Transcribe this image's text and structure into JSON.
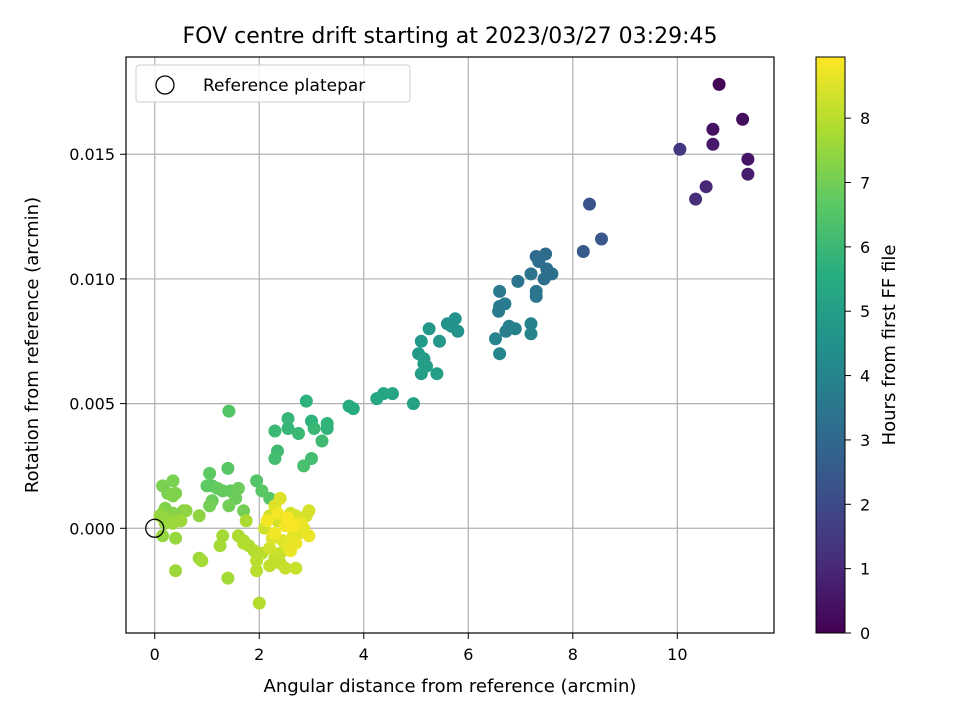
{
  "chart_data": {
    "type": "scatter",
    "title": "FOV centre drift starting at 2023/03/27 03:29:45",
    "xlabel": "Angular distance from reference (arcmin)",
    "ylabel": "Rotation from reference (arcmin)",
    "xlim": [
      -0.55,
      11.85
    ],
    "ylim": [
      -0.0042,
      0.0189
    ],
    "xticks": [
      0,
      2,
      4,
      6,
      8,
      10
    ],
    "yticks": [
      0.0,
      0.005,
      0.01,
      0.015
    ],
    "xtick_labels": [
      "0",
      "2",
      "4",
      "6",
      "8",
      "10"
    ],
    "ytick_labels": [
      "0.000",
      "0.005",
      "0.010",
      "0.015"
    ],
    "grid": true,
    "colormap": "viridis",
    "colorbar": {
      "label": "Hours from first FF file",
      "range": [
        0,
        8.95
      ],
      "ticks": [
        0,
        1,
        2,
        3,
        4,
        5,
        6,
        7,
        8
      ],
      "tick_labels": [
        "0",
        "1",
        "2",
        "3",
        "4",
        "5",
        "6",
        "7",
        "8"
      ]
    },
    "legend": {
      "placement": "top-left",
      "entries": [
        {
          "label": "Reference platepar",
          "marker": "open-circle",
          "x": 0.0,
          "y": 0.0
        }
      ]
    },
    "series": [
      {
        "points": [
          [
            10.8,
            0.0178,
            0.1
          ],
          [
            11.25,
            0.0164,
            0.3
          ],
          [
            10.68,
            0.016,
            0.4
          ],
          [
            11.35,
            0.0148,
            0.5
          ],
          [
            10.68,
            0.0154,
            0.6
          ],
          [
            11.35,
            0.0142,
            0.7
          ],
          [
            10.55,
            0.0137,
            1.0
          ],
          [
            10.35,
            0.0132,
            1.2
          ],
          [
            10.05,
            0.0152,
            1.4
          ],
          [
            8.32,
            0.013,
            2.3
          ],
          [
            8.55,
            0.0116,
            2.4
          ],
          [
            8.2,
            0.0111,
            2.5
          ],
          [
            7.3,
            0.0109,
            3.0
          ],
          [
            7.48,
            0.011,
            3.1
          ],
          [
            7.35,
            0.0107,
            3.2
          ],
          [
            7.5,
            0.0104,
            3.2
          ],
          [
            7.6,
            0.0102,
            3.3
          ],
          [
            7.45,
            0.01,
            3.3
          ],
          [
            7.2,
            0.0102,
            3.4
          ],
          [
            6.95,
            0.0099,
            3.4
          ],
          [
            7.3,
            0.0095,
            3.5
          ],
          [
            7.3,
            0.0093,
            3.5
          ],
          [
            6.6,
            0.0095,
            3.6
          ],
          [
            6.6,
            0.0089,
            3.6
          ],
          [
            6.7,
            0.009,
            3.7
          ],
          [
            6.58,
            0.0087,
            3.7
          ],
          [
            6.78,
            0.0081,
            3.8
          ],
          [
            6.72,
            0.0079,
            3.8
          ],
          [
            6.9,
            0.008,
            3.9
          ],
          [
            7.2,
            0.0082,
            3.9
          ],
          [
            7.2,
            0.0078,
            4.0
          ],
          [
            6.52,
            0.0076,
            4.0
          ],
          [
            6.6,
            0.007,
            4.1
          ],
          [
            5.75,
            0.0084,
            4.5
          ],
          [
            5.6,
            0.0082,
            4.5
          ],
          [
            5.68,
            0.0081,
            4.6
          ],
          [
            5.8,
            0.0079,
            4.6
          ],
          [
            5.25,
            0.008,
            4.7
          ],
          [
            5.45,
            0.0075,
            4.7
          ],
          [
            5.1,
            0.0075,
            4.8
          ],
          [
            5.05,
            0.007,
            4.8
          ],
          [
            5.15,
            0.0068,
            4.9
          ],
          [
            5.15,
            0.0066,
            4.9
          ],
          [
            5.2,
            0.0065,
            5.0
          ],
          [
            5.1,
            0.0062,
            5.0
          ],
          [
            5.4,
            0.0062,
            5.0
          ],
          [
            4.95,
            0.005,
            5.1
          ],
          [
            4.55,
            0.0054,
            5.2
          ],
          [
            4.38,
            0.0054,
            5.2
          ],
          [
            4.25,
            0.0052,
            5.3
          ],
          [
            3.72,
            0.0049,
            5.5
          ],
          [
            3.8,
            0.0048,
            5.5
          ],
          [
            2.9,
            0.0051,
            5.7
          ],
          [
            3.0,
            0.0043,
            5.7
          ],
          [
            3.3,
            0.0042,
            5.8
          ],
          [
            3.3,
            0.004,
            5.8
          ],
          [
            2.55,
            0.0044,
            5.9
          ],
          [
            2.55,
            0.004,
            5.9
          ],
          [
            2.3,
            0.0039,
            6.0
          ],
          [
            2.75,
            0.0038,
            6.0
          ],
          [
            3.05,
            0.004,
            6.0
          ],
          [
            3.2,
            0.0035,
            6.1
          ],
          [
            2.35,
            0.0031,
            6.1
          ],
          [
            2.3,
            0.0028,
            6.2
          ],
          [
            3.0,
            0.0028,
            6.2
          ],
          [
            2.85,
            0.0025,
            6.3
          ],
          [
            1.42,
            0.0047,
            6.5
          ],
          [
            1.95,
            0.0019,
            6.5
          ],
          [
            2.05,
            0.0015,
            6.6
          ],
          [
            2.2,
            0.0012,
            6.6
          ],
          [
            1.4,
            0.0024,
            6.6
          ],
          [
            1.05,
            0.0022,
            6.7
          ],
          [
            1.0,
            0.0017,
            6.7
          ],
          [
            1.1,
            0.0017,
            6.7
          ],
          [
            1.2,
            0.0016,
            6.8
          ],
          [
            1.3,
            0.0015,
            6.8
          ],
          [
            1.45,
            0.0015,
            6.8
          ],
          [
            1.6,
            0.0016,
            6.9
          ],
          [
            1.55,
            0.0012,
            6.9
          ],
          [
            1.1,
            0.0011,
            6.9
          ],
          [
            1.05,
            0.0009,
            7.0
          ],
          [
            1.42,
            0.0009,
            7.0
          ],
          [
            1.7,
            0.0007,
            7.0
          ],
          [
            0.35,
            0.0019,
            7.1
          ],
          [
            0.15,
            0.0017,
            7.1
          ],
          [
            0.25,
            0.0014,
            7.1
          ],
          [
            0.35,
            0.0013,
            7.2
          ],
          [
            0.4,
            0.0014,
            7.2
          ],
          [
            0.2,
            0.0008,
            7.2
          ],
          [
            0.15,
            0.0006,
            7.3
          ],
          [
            0.35,
            0.0006,
            7.3
          ],
          [
            0.45,
            0.0005,
            7.3
          ],
          [
            0.55,
            0.0007,
            7.3
          ],
          [
            0.6,
            0.0007,
            7.4
          ],
          [
            0.85,
            0.0005,
            7.4
          ],
          [
            0.25,
            0.0004,
            7.4
          ],
          [
            0.3,
            0.0003,
            7.4
          ],
          [
            0.2,
            0.0002,
            7.5
          ],
          [
            0.1,
            0.0005,
            7.5
          ],
          [
            0.15,
            -0.0003,
            7.5
          ],
          [
            0.4,
            -0.0004,
            7.5
          ],
          [
            0.5,
            0.0003,
            7.6
          ],
          [
            0.4,
            -0.0017,
            7.6
          ],
          [
            0.35,
            0.0002,
            7.6
          ],
          [
            0.85,
            -0.0012,
            7.6
          ],
          [
            0.9,
            -0.0013,
            7.7
          ],
          [
            1.4,
            -0.002,
            7.7
          ],
          [
            1.3,
            -0.0003,
            7.7
          ],
          [
            1.25,
            -0.0007,
            7.7
          ],
          [
            1.6,
            -0.0003,
            7.8
          ],
          [
            1.7,
            -0.0005,
            7.8
          ],
          [
            1.8,
            -0.0007,
            7.8
          ],
          [
            1.75,
            0.0003,
            7.8
          ],
          [
            1.7,
            -0.0006,
            7.9
          ],
          [
            1.9,
            -0.0009,
            7.9
          ],
          [
            2.0,
            -0.003,
            7.9
          ],
          [
            1.95,
            -0.0013,
            8.0
          ],
          [
            1.95,
            -0.0017,
            8.0
          ],
          [
            2.05,
            -0.001,
            8.0
          ],
          [
            2.2,
            -0.0015,
            8.1
          ],
          [
            2.3,
            -0.0012,
            8.1
          ],
          [
            2.4,
            -0.0014,
            8.1
          ],
          [
            2.5,
            -0.0016,
            8.2
          ],
          [
            2.7,
            -0.0016,
            8.2
          ],
          [
            2.4,
            -0.001,
            8.2
          ],
          [
            2.2,
            -0.0008,
            8.3
          ],
          [
            2.1,
            0.0,
            8.3
          ],
          [
            2.2,
            0.0005,
            8.3
          ],
          [
            2.35,
            0.0003,
            8.3
          ],
          [
            2.6,
            0.0006,
            8.4
          ],
          [
            2.7,
            0.0005,
            8.4
          ],
          [
            2.9,
            0.0005,
            8.4
          ],
          [
            2.95,
            0.0007,
            8.4
          ],
          [
            2.3,
            0.0009,
            8.5
          ],
          [
            2.4,
            0.0012,
            8.5
          ],
          [
            2.25,
            -0.0004,
            8.5
          ],
          [
            2.45,
            -0.0005,
            8.5
          ],
          [
            2.55,
            -0.0007,
            8.6
          ],
          [
            2.65,
            -0.0003,
            8.6
          ],
          [
            2.75,
            -0.0002,
            8.6
          ],
          [
            2.85,
            0.0,
            8.6
          ],
          [
            2.95,
            -0.0003,
            8.7
          ],
          [
            2.6,
            -0.0009,
            8.7
          ],
          [
            2.7,
            -0.0006,
            8.7
          ],
          [
            2.8,
            0.0002,
            8.7
          ],
          [
            2.5,
            0.0001,
            8.8
          ],
          [
            2.3,
            -0.0002,
            8.8
          ],
          [
            2.35,
            0.0006,
            8.8
          ],
          [
            2.15,
            0.0003,
            8.8
          ],
          [
            2.55,
            0.0004,
            8.9
          ],
          [
            2.65,
            0.0001,
            8.9
          ]
        ]
      }
    ]
  }
}
